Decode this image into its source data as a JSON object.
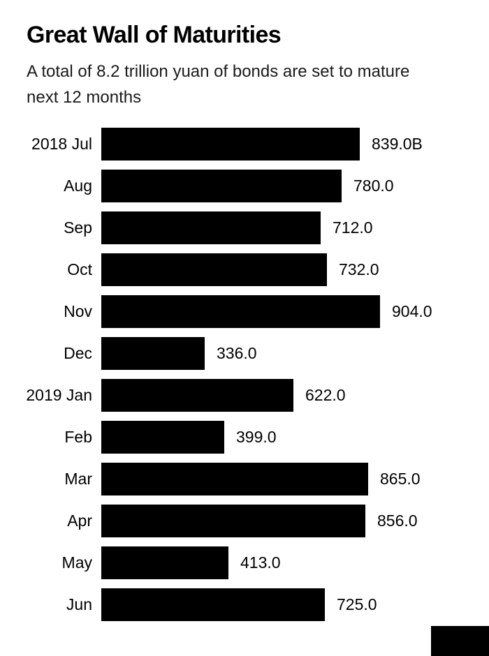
{
  "page": {
    "background": "#ffffff",
    "text_color": "#000000"
  },
  "header": {
    "title": "Great Wall of Maturities",
    "subtitle": "A total of 8.2 trillion yuan of bonds are set to mature next 12 months"
  },
  "chart_data": {
    "type": "bar",
    "orientation": "horizontal",
    "title": "Great Wall of Maturities",
    "subtitle": "A total of 8.2 trillion yuan of bonds are set to mature next 12 months",
    "categories": [
      "2018 Jul",
      "Aug",
      "Sep",
      "Oct",
      "Nov",
      "Dec",
      "2019 Jan",
      "Feb",
      "Mar",
      "Apr",
      "May",
      "Jun"
    ],
    "values": [
      839.0,
      780.0,
      712.0,
      732.0,
      904.0,
      336.0,
      622.0,
      399.0,
      865.0,
      856.0,
      413.0,
      725.0
    ],
    "value_labels": [
      "839.0B",
      "780.0",
      "712.0",
      "732.0",
      "904.0",
      "336.0",
      "622.0",
      "399.0",
      "865.0",
      "856.0",
      "413.0",
      "725.0"
    ],
    "xlim": [
      0,
      904
    ],
    "bar_color": "#000000",
    "grid": false,
    "legend": false
  },
  "decor": {
    "corner_block_color": "#000000"
  }
}
